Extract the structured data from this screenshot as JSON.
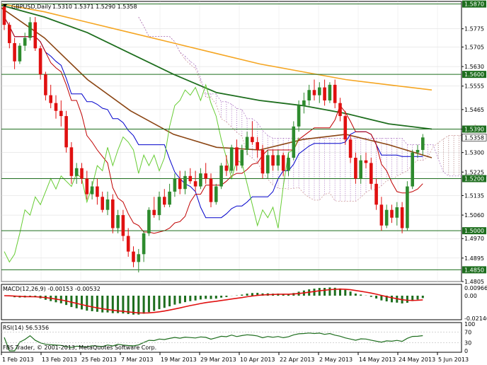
{
  "header": {
    "symbol_label": "GBPUSD,Daily",
    "ohlc": "1.5310 1.5371 1.5290 1.5358"
  },
  "macd_label": "MACD(12,26,9) -0.00153 -0.00532",
  "rsi_label": "RSI(14) 56.5356",
  "copyright": "FBS Trader, © 2001-2013, MetaQuotes Software Corp.",
  "colors": {
    "up": "#2e8b2e",
    "down": "#e01010",
    "sma_long": "#f5a623",
    "sma_mid": "#1e6e1e",
    "sma_short": "#8b4513",
    "tenkan": "#c00000",
    "kijun": "#0000cc",
    "chikou": "#66cc33",
    "kumo": "#9b59b6",
    "hline": "#1e6e1e"
  },
  "chart_data": {
    "type": "candlestick",
    "price_axis": {
      "ylim": [
        1.4805,
        1.588
      ],
      "ticks": [
        "1.5775",
        "1.5705",
        "1.5630",
        "1.5555",
        "1.5465",
        "1.5390",
        "1.5300",
        "1.5225",
        "1.5135",
        "1.5060",
        "1.4970",
        "1.4895",
        "1.4805"
      ]
    },
    "horizontal_levels": [
      {
        "value": 1.587,
        "label": "1.5870"
      },
      {
        "value": 1.56,
        "label": "1.5600"
      },
      {
        "value": 1.539,
        "label": "1.5390"
      },
      {
        "value": 1.52,
        "label": "1.5200"
      },
      {
        "value": 1.5,
        "label": "1.5000"
      },
      {
        "value": 1.485,
        "label": "1.4850"
      }
    ],
    "current_price": {
      "value": 1.5358,
      "label": "1.5358"
    },
    "x_ticks": [
      "1 Feb 2013",
      "13 Feb 2013",
      "25 Feb 2013",
      "7 Mar 2013",
      "19 Mar 2013",
      "29 Mar 2013",
      "10 Apr 2013",
      "22 Apr 2013",
      "2 May 2013",
      "14 May 2013",
      "24 May 2013",
      "5 Jun 2013"
    ],
    "candles": [
      [
        1.586,
        1.587,
        1.577,
        1.579
      ],
      [
        1.579,
        1.58,
        1.57,
        1.572
      ],
      [
        1.572,
        1.574,
        1.562,
        1.565
      ],
      [
        1.565,
        1.572,
        1.564,
        1.571
      ],
      [
        1.571,
        1.576,
        1.569,
        1.574
      ],
      [
        1.574,
        1.582,
        1.573,
        1.58
      ],
      [
        1.58,
        1.582,
        1.569,
        1.57
      ],
      [
        1.57,
        1.571,
        1.558,
        1.56
      ],
      [
        1.56,
        1.561,
        1.55,
        1.552
      ],
      [
        1.552,
        1.556,
        1.547,
        1.549
      ],
      [
        1.549,
        1.552,
        1.543,
        1.546
      ],
      [
        1.546,
        1.55,
        1.54,
        1.544
      ],
      [
        1.544,
        1.546,
        1.53,
        1.532
      ],
      [
        1.532,
        1.534,
        1.518,
        1.521
      ],
      [
        1.521,
        1.526,
        1.518,
        1.524
      ],
      [
        1.524,
        1.526,
        1.518,
        1.52
      ],
      [
        1.52,
        1.523,
        1.512,
        1.514
      ],
      [
        1.514,
        1.519,
        1.512,
        1.517
      ],
      [
        1.517,
        1.52,
        1.51,
        1.513
      ],
      [
        1.513,
        1.515,
        1.507,
        1.508
      ],
      [
        1.508,
        1.515,
        1.506,
        1.512
      ],
      [
        1.512,
        1.514,
        1.499,
        1.501
      ],
      [
        1.501,
        1.508,
        1.499,
        1.506
      ],
      [
        1.506,
        1.508,
        1.496,
        1.498
      ],
      [
        1.498,
        1.501,
        1.49,
        1.492
      ],
      [
        1.492,
        1.494,
        1.486,
        1.488
      ],
      [
        1.488,
        1.493,
        1.484,
        1.491
      ],
      [
        1.491,
        1.5,
        1.488,
        1.499
      ],
      [
        1.499,
        1.509,
        1.498,
        1.508
      ],
      [
        1.508,
        1.513,
        1.505,
        1.506
      ],
      [
        1.506,
        1.515,
        1.504,
        1.513
      ],
      [
        1.513,
        1.516,
        1.509,
        1.51
      ],
      [
        1.51,
        1.518,
        1.509,
        1.515
      ],
      [
        1.515,
        1.522,
        1.513,
        1.52
      ],
      [
        1.52,
        1.523,
        1.514,
        1.516
      ],
      [
        1.516,
        1.523,
        1.514,
        1.521
      ],
      [
        1.521,
        1.524,
        1.518,
        1.519
      ],
      [
        1.519,
        1.523,
        1.515,
        1.517
      ],
      [
        1.517,
        1.524,
        1.516,
        1.522
      ],
      [
        1.522,
        1.526,
        1.518,
        1.52
      ],
      [
        1.52,
        1.522,
        1.509,
        1.511
      ],
      [
        1.511,
        1.518,
        1.51,
        1.517
      ],
      [
        1.517,
        1.526,
        1.516,
        1.525
      ],
      [
        1.525,
        1.529,
        1.521,
        1.523
      ],
      [
        1.523,
        1.533,
        1.522,
        1.532
      ],
      [
        1.532,
        1.535,
        1.523,
        1.525
      ],
      [
        1.525,
        1.533,
        1.524,
        1.531
      ],
      [
        1.531,
        1.538,
        1.529,
        1.536
      ],
      [
        1.536,
        1.542,
        1.533,
        1.534
      ],
      [
        1.534,
        1.536,
        1.528,
        1.531
      ],
      [
        1.531,
        1.533,
        1.52,
        1.522
      ],
      [
        1.522,
        1.531,
        1.52,
        1.529
      ],
      [
        1.529,
        1.531,
        1.523,
        1.525
      ],
      [
        1.525,
        1.531,
        1.523,
        1.529
      ],
      [
        1.529,
        1.53,
        1.521,
        1.523
      ],
      [
        1.523,
        1.53,
        1.521,
        1.528
      ],
      [
        1.528,
        1.542,
        1.527,
        1.54
      ],
      [
        1.54,
        1.55,
        1.538,
        1.548
      ],
      [
        1.548,
        1.553,
        1.545,
        1.55
      ],
      [
        1.55,
        1.556,
        1.548,
        1.554
      ],
      [
        1.554,
        1.558,
        1.55,
        1.552
      ],
      [
        1.552,
        1.557,
        1.549,
        1.555
      ],
      [
        1.555,
        1.558,
        1.548,
        1.55
      ],
      [
        1.55,
        1.557,
        1.549,
        1.556
      ],
      [
        1.556,
        1.558,
        1.547,
        1.549
      ],
      [
        1.549,
        1.551,
        1.542,
        1.544
      ],
      [
        1.544,
        1.546,
        1.533,
        1.535
      ],
      [
        1.535,
        1.537,
        1.526,
        1.528
      ],
      [
        1.528,
        1.53,
        1.518,
        1.52
      ],
      [
        1.52,
        1.529,
        1.518,
        1.527
      ],
      [
        1.527,
        1.53,
        1.524,
        1.526
      ],
      [
        1.526,
        1.528,
        1.516,
        1.518
      ],
      [
        1.518,
        1.52,
        1.508,
        1.51
      ],
      [
        1.51,
        1.513,
        1.5,
        1.502
      ],
      [
        1.502,
        1.51,
        1.501,
        1.508
      ],
      [
        1.508,
        1.51,
        1.503,
        1.505
      ],
      [
        1.505,
        1.511,
        1.502,
        1.509
      ],
      [
        1.509,
        1.511,
        1.499,
        1.501
      ],
      [
        1.501,
        1.519,
        1.5,
        1.517
      ],
      [
        1.517,
        1.531,
        1.516,
        1.53
      ],
      [
        1.53,
        1.533,
        1.528,
        1.531
      ],
      [
        1.531,
        1.5371,
        1.529,
        1.5358
      ]
    ],
    "indicators": [
      {
        "name": "SMA long",
        "values": [
          1.587,
          1.584,
          1.58,
          1.576,
          1.572,
          1.568,
          1.564,
          1.561,
          1.558,
          1.556,
          1.554
        ]
      },
      {
        "name": "SMA 100",
        "values": [
          1.5865,
          1.582,
          1.576,
          1.568,
          1.56,
          1.553,
          1.55,
          1.548,
          1.545,
          1.541,
          1.539
        ]
      },
      {
        "name": "SMA 50",
        "values": [
          1.5855,
          1.574,
          1.558,
          1.546,
          1.537,
          1.532,
          1.531,
          1.535,
          1.537,
          1.533,
          1.528
        ]
      }
    ],
    "macd": {
      "ticks": [
        "0.00966",
        "0.00",
        "-0.02146"
      ]
    },
    "rsi": {
      "ticks": [
        "100",
        "70",
        "30",
        "0"
      ],
      "value": 56.5356
    }
  }
}
